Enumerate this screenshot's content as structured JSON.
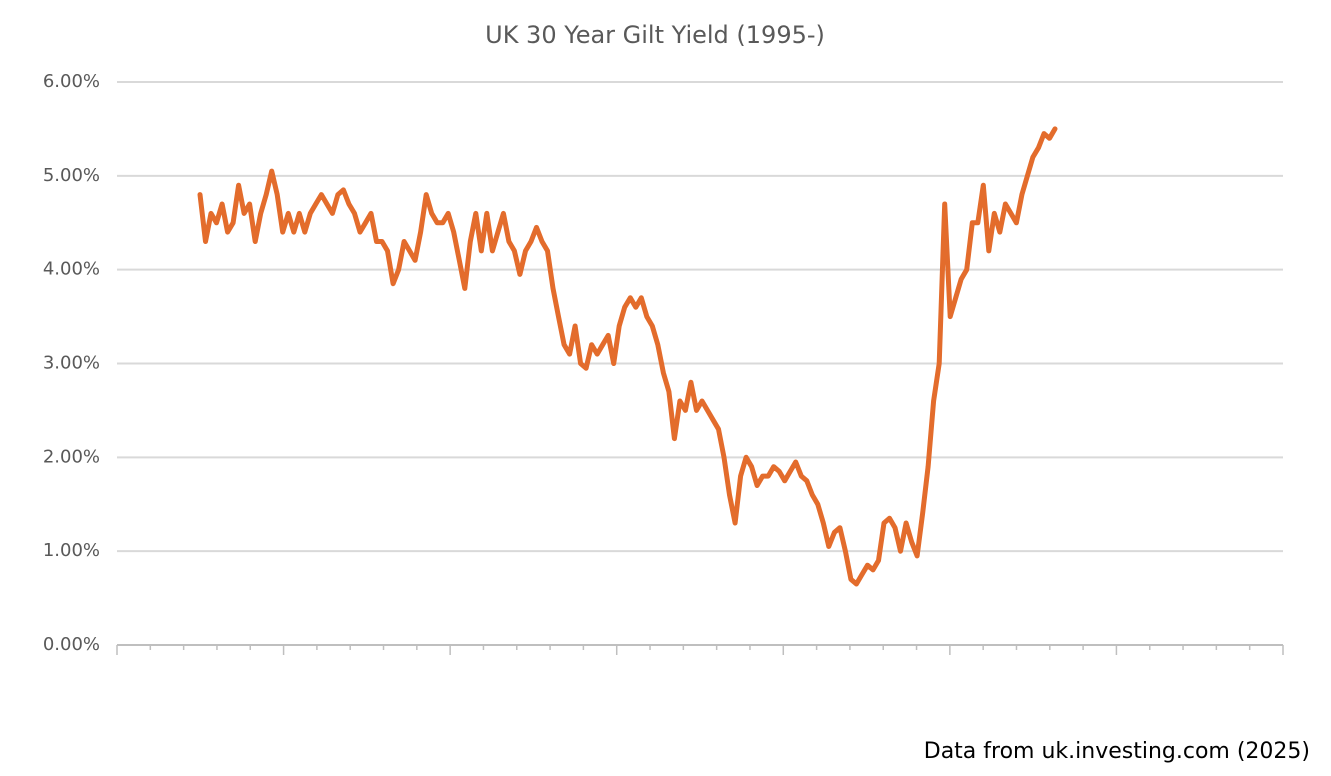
{
  "chart_data": {
    "type": "line",
    "title": "UK 30 Year Gilt Yield (1995-)",
    "note": "Data from uk.investing.com (2025)",
    "color": "#e36c2c",
    "grid": true,
    "ylim": [
      0,
      6
    ],
    "yticks": [
      {
        "value": 0,
        "label": "0.00%"
      },
      {
        "value": 1,
        "label": "1.00%"
      },
      {
        "value": 2,
        "label": "2.00%"
      },
      {
        "value": 3,
        "label": "3.00%"
      },
      {
        "value": 4,
        "label": "4.00%"
      },
      {
        "value": 5,
        "label": "5.00%"
      },
      {
        "value": 6,
        "label": "6.00%"
      }
    ],
    "values": [
      4.8,
      4.3,
      4.6,
      4.5,
      4.7,
      4.4,
      4.5,
      4.9,
      4.6,
      4.7,
      4.3,
      4.6,
      4.8,
      5.05,
      4.8,
      4.4,
      4.6,
      4.4,
      4.6,
      4.4,
      4.6,
      4.7,
      4.8,
      4.7,
      4.6,
      4.8,
      4.85,
      4.7,
      4.6,
      4.4,
      4.5,
      4.6,
      4.3,
      4.3,
      4.2,
      3.85,
      4.0,
      4.3,
      4.2,
      4.1,
      4.4,
      4.8,
      4.6,
      4.5,
      4.5,
      4.6,
      4.4,
      4.1,
      3.8,
      4.3,
      4.6,
      4.2,
      4.6,
      4.2,
      4.4,
      4.6,
      4.3,
      4.2,
      3.95,
      4.2,
      4.3,
      4.45,
      4.3,
      4.2,
      3.8,
      3.5,
      3.2,
      3.1,
      3.4,
      3.0,
      2.95,
      3.2,
      3.1,
      3.2,
      3.3,
      3.0,
      3.4,
      3.6,
      3.7,
      3.6,
      3.7,
      3.5,
      3.4,
      3.2,
      2.9,
      2.7,
      2.2,
      2.6,
      2.5,
      2.8,
      2.5,
      2.6,
      2.5,
      2.4,
      2.3,
      2.0,
      1.6,
      1.3,
      1.8,
      2.0,
      1.9,
      1.7,
      1.8,
      1.8,
      1.9,
      1.85,
      1.75,
      1.85,
      1.95,
      1.8,
      1.75,
      1.6,
      1.5,
      1.3,
      1.05,
      1.2,
      1.25,
      1.0,
      0.7,
      0.65,
      0.75,
      0.85,
      0.8,
      0.9,
      1.3,
      1.35,
      1.25,
      1.0,
      1.3,
      1.1,
      0.95,
      1.4,
      1.9,
      2.6,
      3.0,
      4.7,
      3.5,
      3.7,
      3.9,
      4.0,
      4.5,
      4.5,
      4.9,
      4.2,
      4.6,
      4.4,
      4.7,
      4.6,
      4.5,
      4.8,
      5.0,
      5.2,
      5.3,
      5.45,
      5.4,
      5.5
    ]
  }
}
